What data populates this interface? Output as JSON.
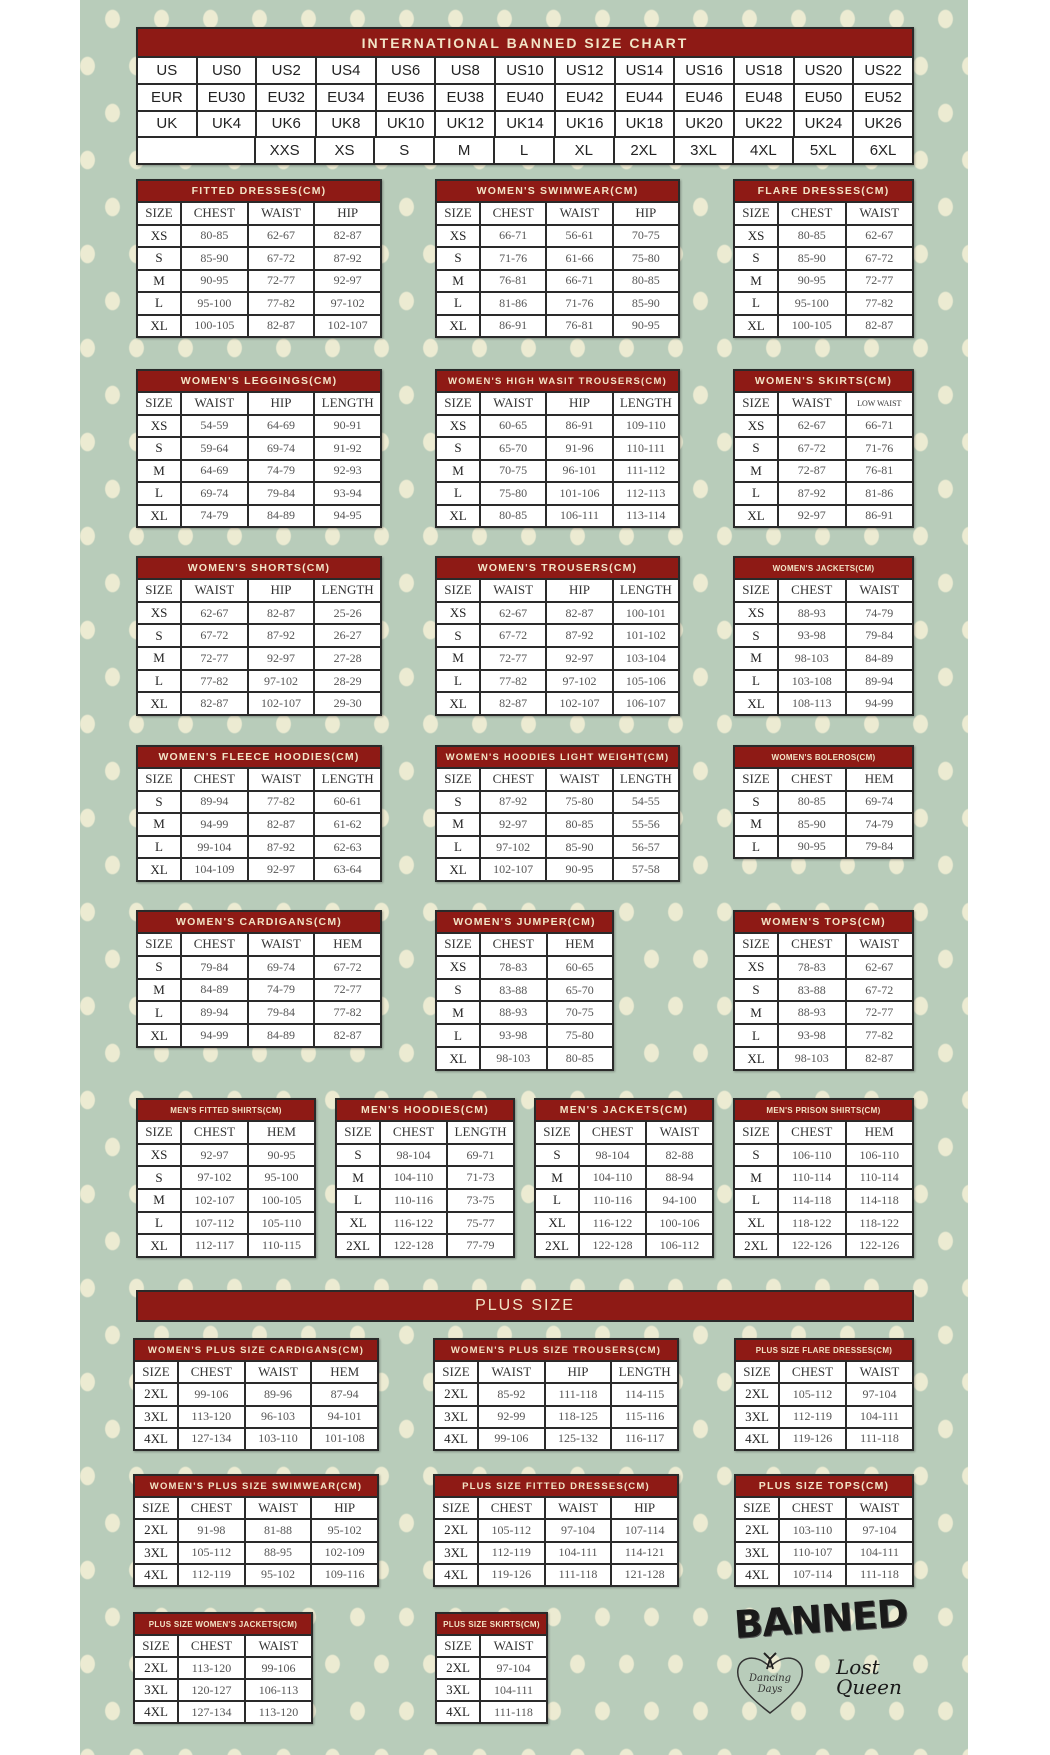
{
  "main_chart": {
    "title": "INTERNATIONAL BANNED SIZE CHART",
    "rows": [
      [
        "US",
        "US0",
        "US2",
        "US4",
        "US6",
        "US8",
        "US10",
        "US12",
        "US14",
        "US16",
        "US18",
        "US20",
        "US22"
      ],
      [
        "EUR",
        "EU30",
        "EU32",
        "EU34",
        "EU36",
        "EU38",
        "EU40",
        "EU42",
        "EU44",
        "EU46",
        "EU48",
        "EU50",
        "EU52"
      ],
      [
        "UK",
        "UK4",
        "UK6",
        "UK8",
        "UK10",
        "UK12",
        "UK14",
        "UK16",
        "UK18",
        "UK20",
        "UK22",
        "UK24",
        "UK26"
      ],
      [
        "",
        "XXS",
        "XS",
        "S",
        "M",
        "L",
        "XL",
        "2XL",
        "3XL",
        "4XL",
        "5XL",
        "6XL"
      ]
    ]
  },
  "plus_banner": "PLUS SIZE",
  "tables": [
    {
      "title": "FITTED DRESSES(CM)",
      "columns": [
        "SIZE",
        "CHEST",
        "WAIST",
        "HIP"
      ],
      "rows": [
        [
          "XS",
          "80-85",
          "62-67",
          "82-87"
        ],
        [
          "S",
          "85-90",
          "67-72",
          "87-92"
        ],
        [
          "M",
          "90-95",
          "72-77",
          "92-97"
        ],
        [
          "L",
          "95-100",
          "77-82",
          "97-102"
        ],
        [
          "XL",
          "100-105",
          "82-87",
          "102-107"
        ]
      ]
    },
    {
      "title": "WOMEN'S SWIMWEAR(CM)",
      "columns": [
        "SIZE",
        "CHEST",
        "WAIST",
        "HIP"
      ],
      "rows": [
        [
          "XS",
          "66-71",
          "56-61",
          "70-75"
        ],
        [
          "S",
          "71-76",
          "61-66",
          "75-80"
        ],
        [
          "M",
          "76-81",
          "66-71",
          "80-85"
        ],
        [
          "L",
          "81-86",
          "71-76",
          "85-90"
        ],
        [
          "XL",
          "86-91",
          "76-81",
          "90-95"
        ]
      ]
    },
    {
      "title": "FLARE DRESSES(CM)",
      "columns": [
        "SIZE",
        "CHEST",
        "WAIST"
      ],
      "rows": [
        [
          "XS",
          "80-85",
          "62-67"
        ],
        [
          "S",
          "85-90",
          "67-72"
        ],
        [
          "M",
          "90-95",
          "72-77"
        ],
        [
          "L",
          "95-100",
          "77-82"
        ],
        [
          "XL",
          "100-105",
          "82-87"
        ]
      ]
    },
    {
      "title": "WOMEN'S LEGGINGS(CM)",
      "columns": [
        "SIZE",
        "WAIST",
        "HIP",
        "LENGTH"
      ],
      "rows": [
        [
          "XS",
          "54-59",
          "64-69",
          "90-91"
        ],
        [
          "S",
          "59-64",
          "69-74",
          "91-92"
        ],
        [
          "M",
          "64-69",
          "74-79",
          "92-93"
        ],
        [
          "L",
          "69-74",
          "79-84",
          "93-94"
        ],
        [
          "XL",
          "74-79",
          "84-89",
          "94-95"
        ]
      ]
    },
    {
      "title": "WOMEN'S HIGH WASIT TROUSERS(CM)",
      "columns": [
        "SIZE",
        "WAIST",
        "HIP",
        "LENGTH"
      ],
      "rows": [
        [
          "XS",
          "60-65",
          "86-91",
          "109-110"
        ],
        [
          "S",
          "65-70",
          "91-96",
          "110-111"
        ],
        [
          "M",
          "70-75",
          "96-101",
          "111-112"
        ],
        [
          "L",
          "75-80",
          "101-106",
          "112-113"
        ],
        [
          "XL",
          "80-85",
          "106-111",
          "113-114"
        ]
      ]
    },
    {
      "title": "WOMEN'S SKIRTS(CM)",
      "columns": [
        "SIZE",
        "WAIST",
        "LOW WAIST"
      ],
      "rows": [
        [
          "XS",
          "62-67",
          "66-71"
        ],
        [
          "S",
          "67-72",
          "71-76"
        ],
        [
          "M",
          "72-87",
          "76-81"
        ],
        [
          "L",
          "87-92",
          "81-86"
        ],
        [
          "XL",
          "92-97",
          "86-91"
        ]
      ]
    },
    {
      "title": "WOMEN'S SHORTS(CM)",
      "columns": [
        "SIZE",
        "WAIST",
        "HIP",
        "LENGTH"
      ],
      "rows": [
        [
          "XS",
          "62-67",
          "82-87",
          "25-26"
        ],
        [
          "S",
          "67-72",
          "87-92",
          "26-27"
        ],
        [
          "M",
          "72-77",
          "92-97",
          "27-28"
        ],
        [
          "L",
          "77-82",
          "97-102",
          "28-29"
        ],
        [
          "XL",
          "82-87",
          "102-107",
          "29-30"
        ]
      ]
    },
    {
      "title": "WOMEN'S TROUSERS(CM)",
      "columns": [
        "SIZE",
        "WAIST",
        "HIP",
        "LENGTH"
      ],
      "rows": [
        [
          "XS",
          "62-67",
          "82-87",
          "100-101"
        ],
        [
          "S",
          "67-72",
          "87-92",
          "101-102"
        ],
        [
          "M",
          "72-77",
          "92-97",
          "103-104"
        ],
        [
          "L",
          "77-82",
          "97-102",
          "105-106"
        ],
        [
          "XL",
          "82-87",
          "102-107",
          "106-107"
        ]
      ]
    },
    {
      "title": "WOMEN'S JACKETS(CM)",
      "columns": [
        "SIZE",
        "CHEST",
        "WAIST"
      ],
      "rows": [
        [
          "XS",
          "88-93",
          "74-79"
        ],
        [
          "S",
          "93-98",
          "79-84"
        ],
        [
          "M",
          "98-103",
          "84-89"
        ],
        [
          "L",
          "103-108",
          "89-94"
        ],
        [
          "XL",
          "108-113",
          "94-99"
        ]
      ]
    },
    {
      "title": "WOMEN'S FLEECE HOODIES(CM)",
      "columns": [
        "SIZE",
        "CHEST",
        "WAIST",
        "LENGTH"
      ],
      "rows": [
        [
          "S",
          "89-94",
          "77-82",
          "60-61"
        ],
        [
          "M",
          "94-99",
          "82-87",
          "61-62"
        ],
        [
          "L",
          "99-104",
          "87-92",
          "62-63"
        ],
        [
          "XL",
          "104-109",
          "92-97",
          "63-64"
        ]
      ]
    },
    {
      "title": "WOMEN'S HOODIES LIGHT WEIGHT(CM)",
      "columns": [
        "SIZE",
        "CHEST",
        "WAIST",
        "LENGTH"
      ],
      "rows": [
        [
          "S",
          "87-92",
          "75-80",
          "54-55"
        ],
        [
          "M",
          "92-97",
          "80-85",
          "55-56"
        ],
        [
          "L",
          "97-102",
          "85-90",
          "56-57"
        ],
        [
          "XL",
          "102-107",
          "90-95",
          "57-58"
        ]
      ]
    },
    {
      "title": "WOMEN'S BOLEROS(CM)",
      "columns": [
        "SIZE",
        "CHEST",
        "HEM"
      ],
      "rows": [
        [
          "S",
          "80-85",
          "69-74"
        ],
        [
          "M",
          "85-90",
          "74-79"
        ],
        [
          "L",
          "90-95",
          "79-84"
        ]
      ]
    },
    {
      "title": "WOMEN'S CARDIGANS(CM)",
      "columns": [
        "SIZE",
        "CHEST",
        "WAIST",
        "HEM"
      ],
      "rows": [
        [
          "S",
          "79-84",
          "69-74",
          "67-72"
        ],
        [
          "M",
          "84-89",
          "74-79",
          "72-77"
        ],
        [
          "L",
          "89-94",
          "79-84",
          "77-82"
        ],
        [
          "XL",
          "94-99",
          "84-89",
          "82-87"
        ]
      ]
    },
    {
      "title": "WOMEN'S JUMPER(CM)",
      "columns": [
        "SIZE",
        "CHEST",
        "HEM"
      ],
      "rows": [
        [
          "XS",
          "78-83",
          "60-65"
        ],
        [
          "S",
          "83-88",
          "65-70"
        ],
        [
          "M",
          "88-93",
          "70-75"
        ],
        [
          "L",
          "93-98",
          "75-80"
        ],
        [
          "XL",
          "98-103",
          "80-85"
        ]
      ]
    },
    {
      "title": "WOMEN'S TOPS(CM)",
      "columns": [
        "SIZE",
        "CHEST",
        "WAIST"
      ],
      "rows": [
        [
          "XS",
          "78-83",
          "62-67"
        ],
        [
          "S",
          "83-88",
          "67-72"
        ],
        [
          "M",
          "88-93",
          "72-77"
        ],
        [
          "L",
          "93-98",
          "77-82"
        ],
        [
          "XL",
          "98-103",
          "82-87"
        ]
      ]
    },
    {
      "title": "MEN'S FITTED SHIRTS(CM)",
      "columns": [
        "SIZE",
        "CHEST",
        "HEM"
      ],
      "rows": [
        [
          "XS",
          "92-97",
          "90-95"
        ],
        [
          "S",
          "97-102",
          "95-100"
        ],
        [
          "M",
          "102-107",
          "100-105"
        ],
        [
          "L",
          "107-112",
          "105-110"
        ],
        [
          "XL",
          "112-117",
          "110-115"
        ]
      ]
    },
    {
      "title": "MEN'S HOODIES(CM)",
      "columns": [
        "SIZE",
        "CHEST",
        "LENGTH"
      ],
      "rows": [
        [
          "S",
          "98-104",
          "69-71"
        ],
        [
          "M",
          "104-110",
          "71-73"
        ],
        [
          "L",
          "110-116",
          "73-75"
        ],
        [
          "XL",
          "116-122",
          "75-77"
        ],
        [
          "2XL",
          "122-128",
          "77-79"
        ]
      ]
    },
    {
      "title": "MEN'S JACKETS(CM)",
      "columns": [
        "SIZE",
        "CHEST",
        "WAIST"
      ],
      "rows": [
        [
          "S",
          "98-104",
          "82-88"
        ],
        [
          "M",
          "104-110",
          "88-94"
        ],
        [
          "L",
          "110-116",
          "94-100"
        ],
        [
          "XL",
          "116-122",
          "100-106"
        ],
        [
          "2XL",
          "122-128",
          "106-112"
        ]
      ]
    },
    {
      "title": "MEN'S PRISON SHIRTS(CM)",
      "columns": [
        "SIZE",
        "CHEST",
        "HEM"
      ],
      "rows": [
        [
          "S",
          "106-110",
          "106-110"
        ],
        [
          "M",
          "110-114",
          "110-114"
        ],
        [
          "L",
          "114-118",
          "114-118"
        ],
        [
          "XL",
          "118-122",
          "118-122"
        ],
        [
          "2XL",
          "122-126",
          "122-126"
        ]
      ]
    },
    {
      "title": "WOMEN'S PLUS SIZE CARDIGANS(CM)",
      "columns": [
        "SIZE",
        "CHEST",
        "WAIST",
        "HEM"
      ],
      "rows": [
        [
          "2XL",
          "99-106",
          "89-96",
          "87-94"
        ],
        [
          "3XL",
          "113-120",
          "96-103",
          "94-101"
        ],
        [
          "4XL",
          "127-134",
          "103-110",
          "101-108"
        ]
      ]
    },
    {
      "title": "WOMEN'S PLUS SIZE TROUSERS(CM)",
      "columns": [
        "SIZE",
        "WAIST",
        "HIP",
        "LENGTH"
      ],
      "rows": [
        [
          "2XL",
          "85-92",
          "111-118",
          "114-115"
        ],
        [
          "3XL",
          "92-99",
          "118-125",
          "115-116"
        ],
        [
          "4XL",
          "99-106",
          "125-132",
          "116-117"
        ]
      ]
    },
    {
      "title": "PLUS SIZE FLARE DRESSES(CM)",
      "columns": [
        "SIZE",
        "CHEST",
        "WAIST"
      ],
      "rows": [
        [
          "2XL",
          "105-112",
          "97-104"
        ],
        [
          "3XL",
          "112-119",
          "104-111"
        ],
        [
          "4XL",
          "119-126",
          "111-118"
        ]
      ]
    },
    {
      "title": "WOMEN'S PLUS SIZE SWIMWEAR(CM)",
      "columns": [
        "SIZE",
        "CHEST",
        "WAIST",
        "HIP"
      ],
      "rows": [
        [
          "2XL",
          "91-98",
          "81-88",
          "95-102"
        ],
        [
          "3XL",
          "105-112",
          "88-95",
          "102-109"
        ],
        [
          "4XL",
          "112-119",
          "95-102",
          "109-116"
        ]
      ]
    },
    {
      "title": "PLUS SIZE FITTED DRESSES(CM)",
      "columns": [
        "SIZE",
        "CHEST",
        "WAIST",
        "HIP"
      ],
      "rows": [
        [
          "2XL",
          "105-112",
          "97-104",
          "107-114"
        ],
        [
          "3XL",
          "112-119",
          "104-111",
          "114-121"
        ],
        [
          "4XL",
          "119-126",
          "111-118",
          "121-128"
        ]
      ]
    },
    {
      "title": "PLUS SIZE TOPS(CM)",
      "columns": [
        "SIZE",
        "CHEST",
        "WAIST"
      ],
      "rows": [
        [
          "2XL",
          "103-110",
          "97-104"
        ],
        [
          "3XL",
          "110-107",
          "104-111"
        ],
        [
          "4XL",
          "107-114",
          "111-118"
        ]
      ]
    },
    {
      "title": "PLUS SIZE WOMEN'S JACKETS(CM)",
      "columns": [
        "SIZE",
        "CHEST",
        "WAIST"
      ],
      "rows": [
        [
          "2XL",
          "113-120",
          "99-106"
        ],
        [
          "3XL",
          "120-127",
          "106-113"
        ],
        [
          "4XL",
          "127-134",
          "113-120"
        ]
      ]
    },
    {
      "title": "PLUS SIZE SKIRTS(CM)",
      "columns": [
        "SIZE",
        "WAIST"
      ],
      "rows": [
        [
          "2XL",
          "97-104"
        ],
        [
          "3XL",
          "104-111"
        ],
        [
          "4XL",
          "111-118"
        ]
      ]
    }
  ],
  "logos": {
    "banned": "BANNED",
    "dancing_days": "Dancing Days",
    "lost_queen": "Lost Queen"
  },
  "colors": {
    "header_red": "#8e1a15",
    "background_green": "#b8ccba",
    "dot_cream": "#ecebd2"
  }
}
